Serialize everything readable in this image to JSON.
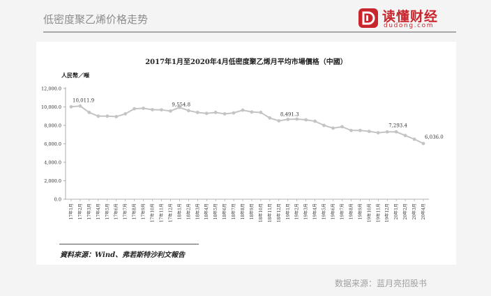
{
  "header": {
    "title": "低密度聚乙烯价格走势"
  },
  "logo": {
    "name": "读懂财经",
    "domain": "dudong.com"
  },
  "chart_data": {
    "type": "line",
    "title": "2017年1月至2020年4月低密度聚乙烯月平均市場價格（中國）",
    "ylabel": "人民幣／噸",
    "ylim": [
      0,
      12000
    ],
    "yticks": [
      "12,000.0",
      "10,000.0",
      "8,000.0",
      "6,000.0",
      "4,000.0",
      "2,000.0",
      "0.0"
    ],
    "ytick_values": [
      12000,
      10000,
      8000,
      6000,
      4000,
      2000,
      0
    ],
    "categories": [
      "17年1月",
      "17年2月",
      "17年3月",
      "17年4月",
      "17年5月",
      "17年6月",
      "17年7月",
      "17年8月",
      "17年9月",
      "17年10月",
      "17年11月",
      "17年12月",
      "18年1月",
      "18年2月",
      "18年3月",
      "18年4月",
      "18年5月",
      "18年6月",
      "18年7月",
      "18年8月",
      "18年9月",
      "18年10月",
      "18年11月",
      "18年12月",
      "19年1月",
      "19年2月",
      "19年3月",
      "19年4月",
      "19年5月",
      "19年6月",
      "19年7月",
      "19年8月",
      "19年9月",
      "19年10月",
      "19年11月",
      "19年12月",
      "20年1月",
      "20年2月",
      "20年3月",
      "20年4月"
    ],
    "values": [
      10011.9,
      10100,
      9400,
      9000,
      9000,
      8950,
      9250,
      9800,
      9850,
      9700,
      9680,
      9554.8,
      9950,
      9600,
      9400,
      9300,
      9400,
      9250,
      9350,
      9650,
      9450,
      9400,
      8800,
      8491.3,
      8650,
      8680,
      8600,
      8450,
      8000,
      7700,
      7850,
      7450,
      7450,
      7350,
      7200,
      7293.4,
      7300,
      6900,
      6500,
      6036.0
    ],
    "data_labels": [
      {
        "index": 0,
        "text": "10,011.9"
      },
      {
        "index": 11,
        "text": "9,554.8"
      },
      {
        "index": 23,
        "text": "8,491.3"
      },
      {
        "index": 35,
        "text": "7,293.4"
      },
      {
        "index": 39,
        "text": "6,036.0"
      }
    ],
    "grid": false,
    "color": "#c4c4c4"
  },
  "source_note": "資料來源：Wind、弗若斯特沙利文報告",
  "footer": {
    "source": "数据来源：蓝月亮招股书"
  }
}
